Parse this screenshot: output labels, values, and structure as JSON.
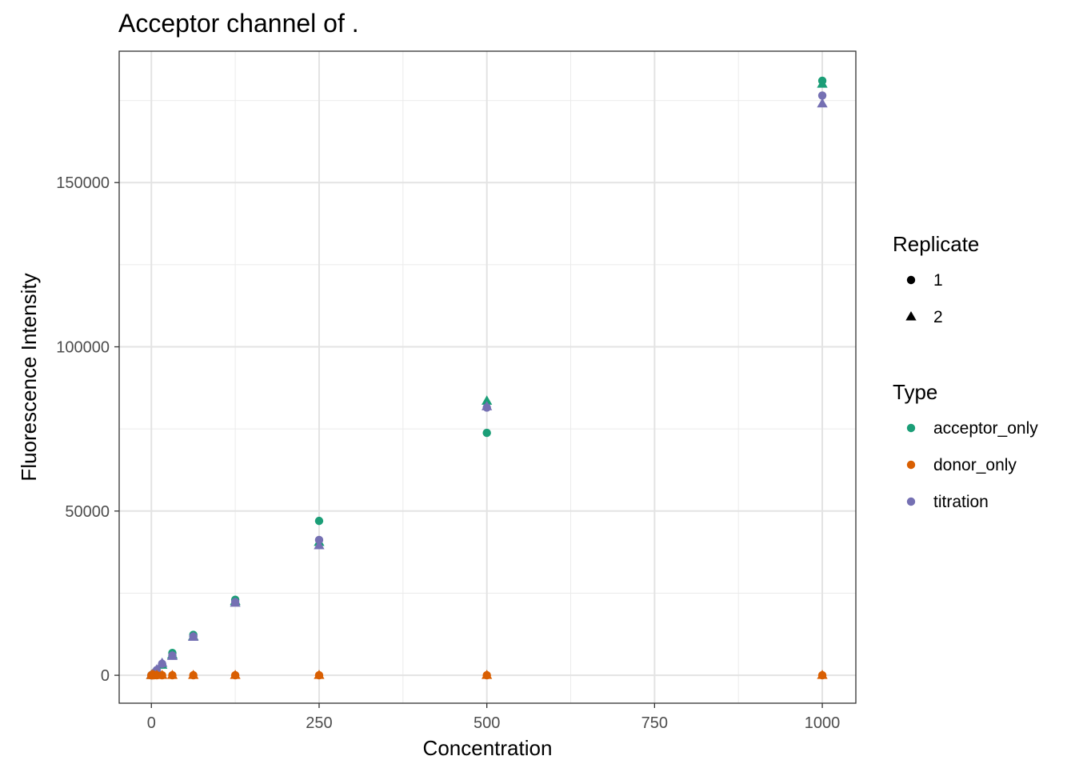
{
  "chart_data": {
    "type": "scatter",
    "title": "Acceptor channel of .",
    "xlabel": "Concentration",
    "ylabel": "Fluorescence Intensity",
    "xlim": [
      -48,
      1050
    ],
    "ylim": [
      -8500,
      190000
    ],
    "x_ticks": [
      0,
      250,
      500,
      750,
      1000
    ],
    "x_tick_labels": [
      "0",
      "250",
      "500",
      "750",
      "1000"
    ],
    "y_ticks": [
      0,
      50000,
      100000,
      150000
    ],
    "y_tick_labels": [
      "0",
      "50000",
      "100000",
      "150000"
    ],
    "x_minor": [
      125,
      375,
      625,
      875
    ],
    "y_minor": [
      25000,
      75000,
      125000,
      175000
    ],
    "grid": true,
    "legend_placement": "right",
    "legend_shape": {
      "title": "Replicate",
      "entries": [
        {
          "label": "1",
          "shape": "circle"
        },
        {
          "label": "2",
          "shape": "triangle"
        }
      ]
    },
    "legend_color": {
      "title": "Type",
      "entries": [
        {
          "label": "acceptor_only",
          "color": "#1b9e77"
        },
        {
          "label": "donor_only",
          "color": "#d95f02"
        },
        {
          "label": "titration",
          "color": "#7570b3"
        }
      ]
    },
    "series": [
      {
        "type": "acceptor_only",
        "replicate": "1",
        "color": "#1b9e77",
        "shape": "circle",
        "x": [
          0,
          1,
          2,
          4,
          8,
          16,
          31.25,
          62.5,
          125,
          250,
          500,
          1000
        ],
        "y": [
          0,
          150,
          300,
          600,
          1200,
          3300,
          6800,
          12300,
          23000,
          47000,
          73800,
          181000
        ]
      },
      {
        "type": "acceptor_only",
        "replicate": "2",
        "color": "#1b9e77",
        "shape": "triangle",
        "x": [
          0,
          1,
          2,
          4,
          8,
          16,
          31.25,
          62.5,
          125,
          250,
          500,
          1000
        ],
        "y": [
          0,
          150,
          300,
          600,
          1200,
          3100,
          6200,
          11800,
          22500,
          40500,
          83500,
          180000
        ]
      },
      {
        "type": "titration",
        "replicate": "1",
        "color": "#7570b3",
        "shape": "circle",
        "x": [
          0,
          1,
          2,
          4,
          8,
          16,
          31.25,
          62.5,
          125,
          250,
          500,
          1000
        ],
        "y": [
          0,
          150,
          300,
          600,
          1600,
          3500,
          6000,
          11800,
          22300,
          41200,
          81500,
          176500
        ]
      },
      {
        "type": "titration",
        "replicate": "2",
        "color": "#7570b3",
        "shape": "triangle",
        "x": [
          0,
          1,
          2,
          4,
          8,
          16,
          31.25,
          62.5,
          125,
          250,
          500,
          1000
        ],
        "y": [
          0,
          150,
          300,
          600,
          1700,
          3700,
          5800,
          11600,
          22000,
          39500,
          81800,
          174000
        ]
      },
      {
        "type": "donor_only",
        "replicate": "1",
        "color": "#d95f02",
        "shape": "circle",
        "x": [
          0,
          1,
          2,
          4,
          8,
          16,
          31.25,
          62.5,
          125,
          250,
          500,
          1000
        ],
        "y": [
          0,
          0,
          0,
          0,
          0,
          0,
          0,
          0,
          0,
          0,
          0,
          0
        ]
      },
      {
        "type": "donor_only",
        "replicate": "2",
        "color": "#d95f02",
        "shape": "triangle",
        "x": [
          0,
          1,
          2,
          4,
          8,
          16,
          31.25,
          62.5,
          125,
          250,
          500,
          1000
        ],
        "y": [
          0,
          0,
          0,
          0,
          0,
          0,
          0,
          0,
          0,
          0,
          0,
          0
        ]
      }
    ]
  }
}
